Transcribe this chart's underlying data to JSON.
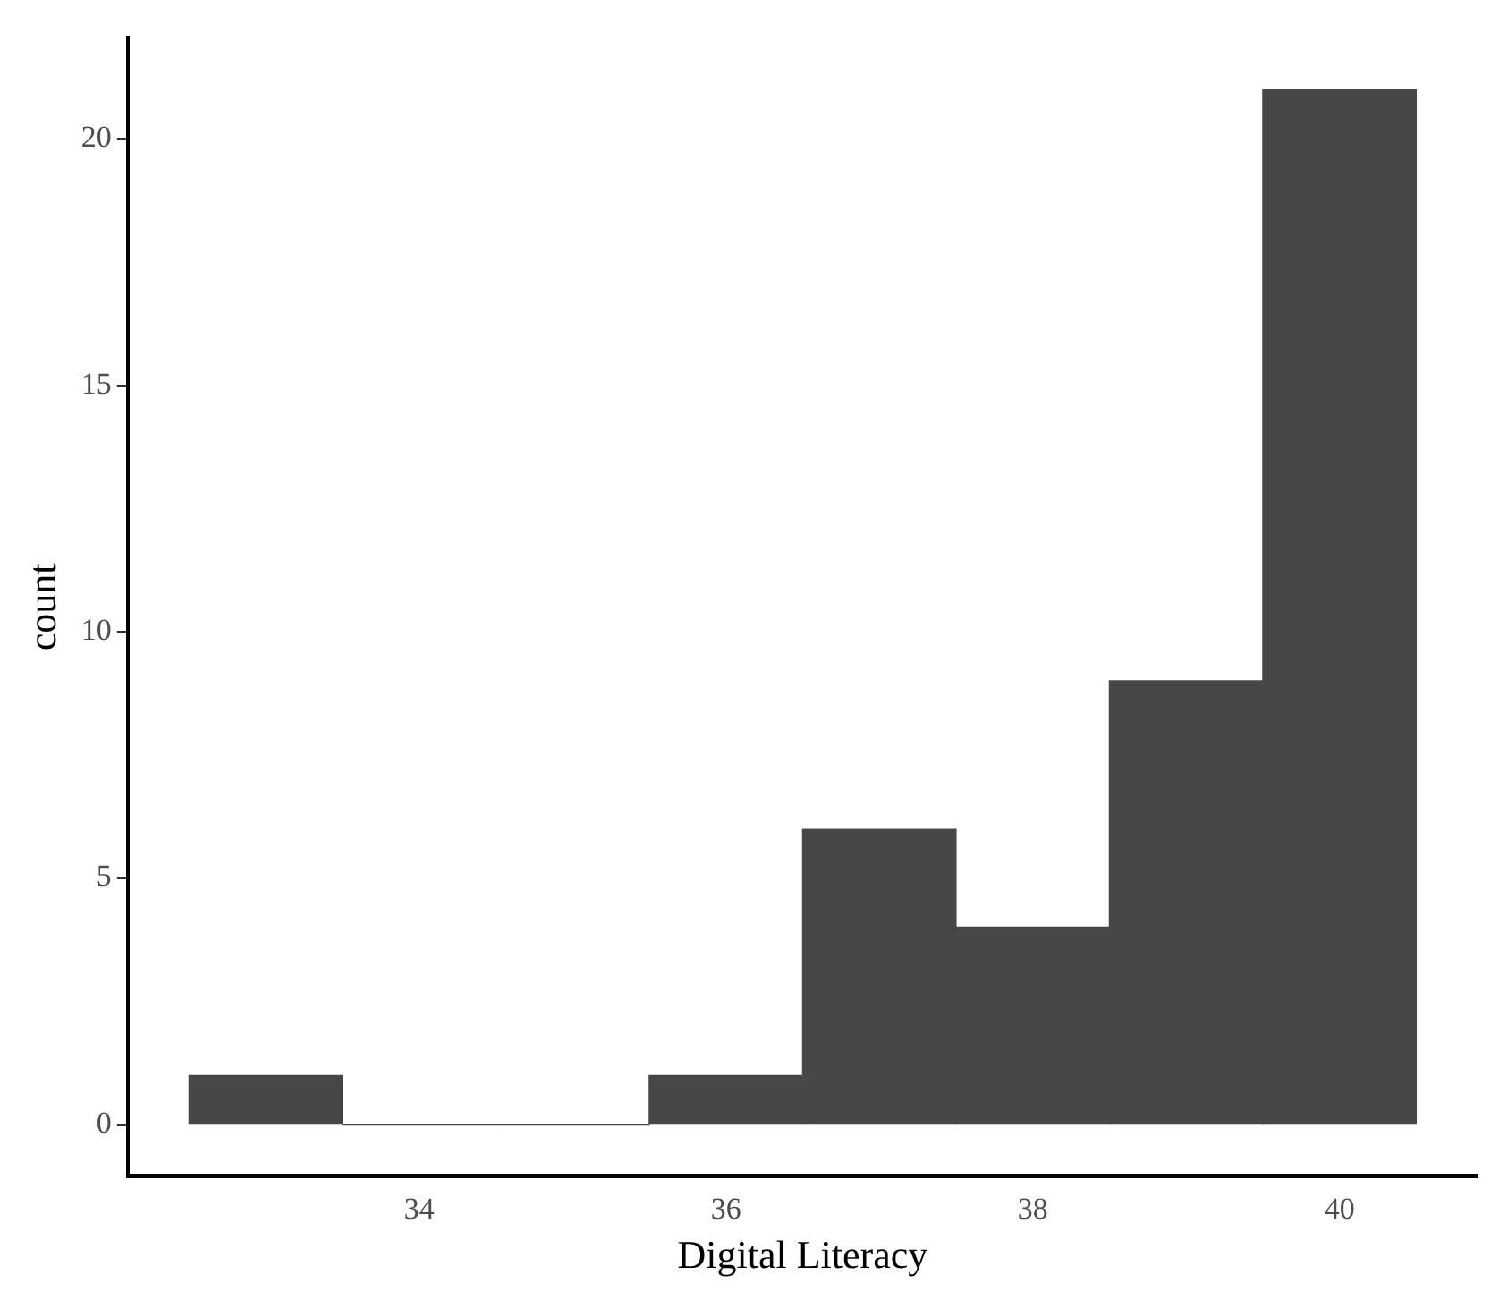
{
  "chart_data": {
    "type": "histogram",
    "xlabel": "Digital Literacy",
    "ylabel": "count",
    "bins": [
      32.5,
      33.5,
      34.5,
      35.5,
      36.5,
      37.5,
      38.5,
      39.5,
      40.5
    ],
    "values": [
      1,
      0,
      0,
      1,
      6,
      4,
      9,
      21
    ],
    "color": "#474747",
    "xlim": [
      32.1,
      40.9
    ],
    "xticks": [
      34,
      36,
      38,
      40
    ],
    "ylim": [
      -1.05,
      22.05
    ],
    "yticks": [
      0,
      5,
      10,
      15,
      20
    ],
    "grid": false,
    "legend": false
  }
}
